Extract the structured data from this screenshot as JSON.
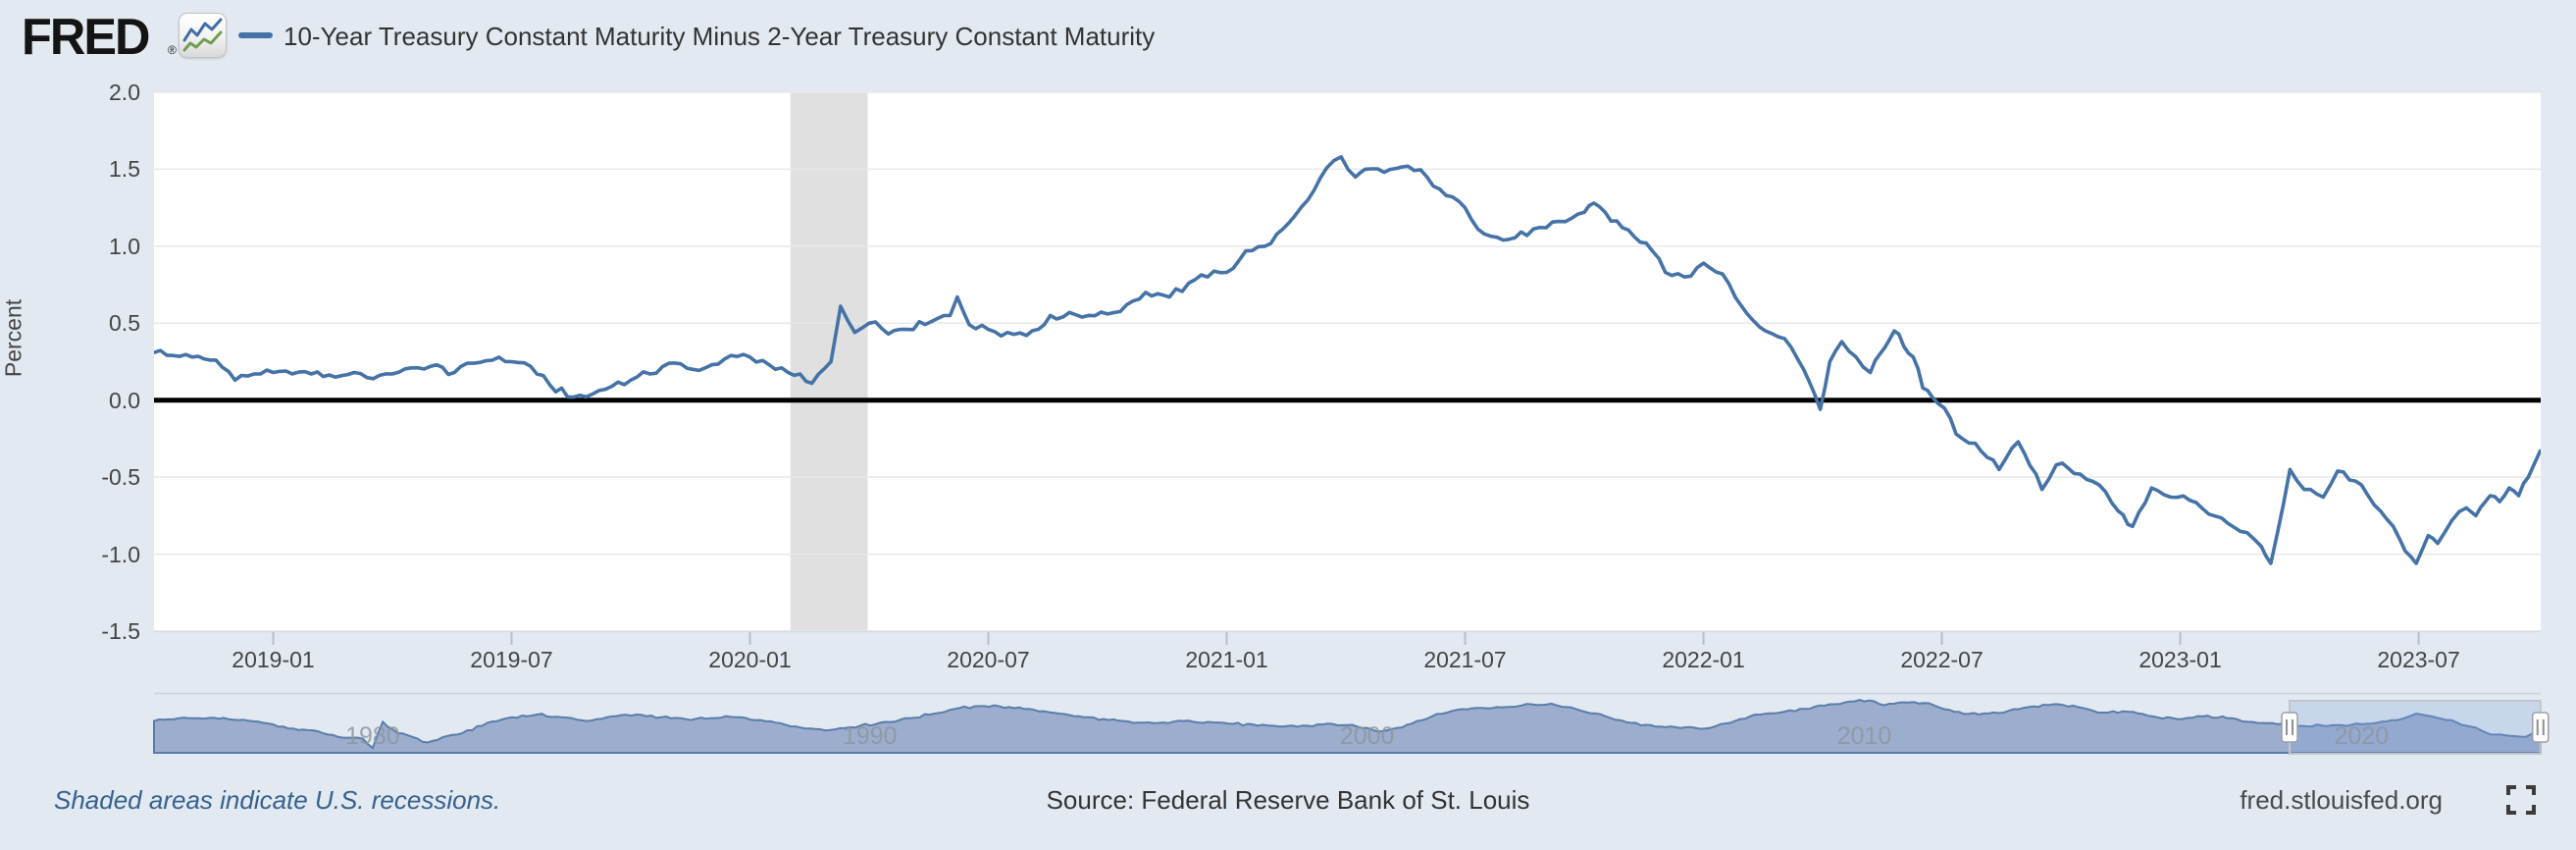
{
  "header": {
    "logo": "FRED",
    "reg": "®",
    "logo_icon": "line-chart-icon",
    "legend_label": "10-Year Treasury Constant Maturity Minus 2-Year Treasury Constant Maturity"
  },
  "footer": {
    "note": "Shaded areas indicate U.S. recessions.",
    "source": "Source: Federal Reserve Bank of St. Louis",
    "site": "fred.stlouisfed.org",
    "fullscreen_icon": "fullscreen-expand-icon"
  },
  "colors": {
    "background": "#e2e9f1",
    "plot_bg": "#ffffff",
    "grid": "#e8e8e8",
    "recession": "#e0e0e0",
    "line": "#4572a7",
    "zero_line": "#000000",
    "axis_text": "#444444",
    "tick_mark": "#b6bfca",
    "plot_bottom_border": "#d4dbe4",
    "slider_track_line": "#c9d2dd",
    "slider_fill": "#9cadcd",
    "slider_line": "#5a7dab",
    "selection_fill": "rgba(125,160,220,0.25)",
    "selection_border": "#c2c6cb",
    "handle_fill": "#fdfdfd",
    "handle_border": "#9a9fa5",
    "handle_grip": "#8b9097"
  },
  "chart_data": {
    "type": "line",
    "title": "10-Year Treasury Constant Maturity Minus 2-Year Treasury Constant Maturity",
    "xlabel": "",
    "ylabel": "Percent",
    "ylim": [
      -1.5,
      2.0
    ],
    "x_range_decimal_years": [
      2018.75,
      2023.756
    ],
    "grid": true,
    "legend_position": "top-left",
    "y_tick_labels": [
      "2.0",
      "1.5",
      "1.0",
      "0.5",
      "0.0",
      "-0.5",
      "-1.0",
      "-1.5"
    ],
    "y_tick_values": [
      2.0,
      1.5,
      1.0,
      0.5,
      0.0,
      -0.5,
      -1.0,
      -1.5
    ],
    "x_tick_labels": [
      "2019-01",
      "2019-07",
      "2020-01",
      "2020-07",
      "2021-01",
      "2021-07",
      "2022-01",
      "2022-07",
      "2023-01",
      "2023-07"
    ],
    "x_tick_values": [
      2019.0,
      2019.5,
      2020.0,
      2020.5,
      2021.0,
      2021.5,
      2022.0,
      2022.5,
      2023.0,
      2023.5
    ],
    "zero_line": 0,
    "recession_bands": [
      [
        2020.085,
        2020.247
      ]
    ],
    "series": [
      {
        "name": "10-Year Treasury Constant Maturity Minus 2-Year Treasury Constant Maturity",
        "units": "Percent",
        "color": "#4572a7",
        "points": [
          [
            2018.75,
            0.31
          ],
          [
            2018.79,
            0.29
          ],
          [
            2018.83,
            0.28
          ],
          [
            2018.88,
            0.26
          ],
          [
            2018.92,
            0.13
          ],
          [
            2018.96,
            0.17
          ],
          [
            2019.0,
            0.18
          ],
          [
            2019.04,
            0.17
          ],
          [
            2019.08,
            0.17
          ],
          [
            2019.13,
            0.15
          ],
          [
            2019.17,
            0.18
          ],
          [
            2019.21,
            0.14
          ],
          [
            2019.25,
            0.17
          ],
          [
            2019.29,
            0.21
          ],
          [
            2019.33,
            0.22
          ],
          [
            2019.38,
            0.18
          ],
          [
            2019.42,
            0.24
          ],
          [
            2019.46,
            0.26
          ],
          [
            2019.5,
            0.25
          ],
          [
            2019.54,
            0.22
          ],
          [
            2019.58,
            0.1
          ],
          [
            2019.63,
            0.02
          ],
          [
            2019.67,
            0.04
          ],
          [
            2019.71,
            0.09
          ],
          [
            2019.75,
            0.13
          ],
          [
            2019.79,
            0.17
          ],
          [
            2019.83,
            0.24
          ],
          [
            2019.88,
            0.2
          ],
          [
            2019.92,
            0.23
          ],
          [
            2019.96,
            0.29
          ],
          [
            2020.0,
            0.28
          ],
          [
            2020.04,
            0.23
          ],
          [
            2020.08,
            0.18
          ],
          [
            2020.13,
            0.11
          ],
          [
            2020.17,
            0.25
          ],
          [
            2020.19,
            0.61
          ],
          [
            2020.22,
            0.44
          ],
          [
            2020.25,
            0.5
          ],
          [
            2020.29,
            0.43
          ],
          [
            2020.33,
            0.46
          ],
          [
            2020.38,
            0.51
          ],
          [
            2020.42,
            0.55
          ],
          [
            2020.435,
            0.67
          ],
          [
            2020.46,
            0.49
          ],
          [
            2020.5,
            0.46
          ],
          [
            2020.54,
            0.44
          ],
          [
            2020.58,
            0.42
          ],
          [
            2020.63,
            0.55
          ],
          [
            2020.67,
            0.57
          ],
          [
            2020.71,
            0.55
          ],
          [
            2020.75,
            0.56
          ],
          [
            2020.79,
            0.62
          ],
          [
            2020.83,
            0.7
          ],
          [
            2020.88,
            0.67
          ],
          [
            2020.92,
            0.76
          ],
          [
            2020.96,
            0.8
          ],
          [
            2021.0,
            0.83
          ],
          [
            2021.04,
            0.97
          ],
          [
            2021.08,
            1.0
          ],
          [
            2021.13,
            1.15
          ],
          [
            2021.17,
            1.3
          ],
          [
            2021.21,
            1.51
          ],
          [
            2021.24,
            1.58
          ],
          [
            2021.27,
            1.45
          ],
          [
            2021.29,
            1.5
          ],
          [
            2021.33,
            1.48
          ],
          [
            2021.38,
            1.52
          ],
          [
            2021.42,
            1.45
          ],
          [
            2021.46,
            1.33
          ],
          [
            2021.5,
            1.25
          ],
          [
            2021.54,
            1.08
          ],
          [
            2021.58,
            1.04
          ],
          [
            2021.63,
            1.07
          ],
          [
            2021.67,
            1.12
          ],
          [
            2021.71,
            1.16
          ],
          [
            2021.75,
            1.22
          ],
          [
            2021.77,
            1.28
          ],
          [
            2021.83,
            1.12
          ],
          [
            2021.88,
            1.02
          ],
          [
            2021.92,
            0.83
          ],
          [
            2021.96,
            0.8
          ],
          [
            2022.0,
            0.89
          ],
          [
            2022.04,
            0.82
          ],
          [
            2022.08,
            0.61
          ],
          [
            2022.13,
            0.45
          ],
          [
            2022.17,
            0.4
          ],
          [
            2022.21,
            0.2
          ],
          [
            2022.245,
            -0.06
          ],
          [
            2022.265,
            0.25
          ],
          [
            2022.29,
            0.38
          ],
          [
            2022.32,
            0.28
          ],
          [
            2022.35,
            0.18
          ],
          [
            2022.37,
            0.3
          ],
          [
            2022.4,
            0.45
          ],
          [
            2022.42,
            0.35
          ],
          [
            2022.44,
            0.28
          ],
          [
            2022.46,
            0.08
          ],
          [
            2022.48,
            0.02
          ],
          [
            2022.505,
            -0.05
          ],
          [
            2022.53,
            -0.22
          ],
          [
            2022.57,
            -0.28
          ],
          [
            2022.62,
            -0.45
          ],
          [
            2022.66,
            -0.27
          ],
          [
            2022.71,
            -0.58
          ],
          [
            2022.74,
            -0.42
          ],
          [
            2022.79,
            -0.48
          ],
          [
            2022.83,
            -0.55
          ],
          [
            2022.87,
            -0.72
          ],
          [
            2022.9,
            -0.82
          ],
          [
            2022.94,
            -0.57
          ],
          [
            2022.98,
            -0.63
          ],
          [
            2023.02,
            -0.65
          ],
          [
            2023.06,
            -0.74
          ],
          [
            2023.1,
            -0.8
          ],
          [
            2023.14,
            -0.86
          ],
          [
            2023.17,
            -0.95
          ],
          [
            2023.19,
            -1.06
          ],
          [
            2023.23,
            -0.45
          ],
          [
            2023.26,
            -0.58
          ],
          [
            2023.3,
            -0.63
          ],
          [
            2023.33,
            -0.46
          ],
          [
            2023.38,
            -0.55
          ],
          [
            2023.42,
            -0.72
          ],
          [
            2023.46,
            -0.9
          ],
          [
            2023.495,
            -1.06
          ],
          [
            2023.52,
            -0.88
          ],
          [
            2023.54,
            -0.93
          ],
          [
            2023.57,
            -0.78
          ],
          [
            2023.6,
            -0.7
          ],
          [
            2023.62,
            -0.75
          ],
          [
            2023.65,
            -0.62
          ],
          [
            2023.67,
            -0.66
          ],
          [
            2023.69,
            -0.57
          ],
          [
            2023.71,
            -0.62
          ],
          [
            2023.73,
            -0.5
          ],
          [
            2023.755,
            -0.33
          ]
        ]
      }
    ]
  },
  "range_slider": {
    "full_range_decimal_years": [
      1975.8,
      2023.8
    ],
    "selected_window_decimal_years": [
      2018.75,
      2023.756
    ],
    "decade_labels": [
      "1980",
      "1990",
      "2000",
      "2010",
      "2020"
    ],
    "decade_values": [
      1980,
      1990,
      2000,
      2010,
      2020
    ],
    "overview_points": [
      [
        1975.8,
        0.7
      ],
      [
        1976.0,
        0.85
      ],
      [
        1976.5,
        1.0
      ],
      [
        1977.0,
        1.05
      ],
      [
        1977.5,
        0.8
      ],
      [
        1978.0,
        0.5
      ],
      [
        1978.5,
        -0.1
      ],
      [
        1979.0,
        -0.3
      ],
      [
        1979.5,
        -1.0
      ],
      [
        1980.0,
        -1.2
      ],
      [
        1980.2,
        -2.2
      ],
      [
        1980.4,
        0.6
      ],
      [
        1980.7,
        -0.6
      ],
      [
        1981.0,
        -1.0
      ],
      [
        1981.3,
        -1.6
      ],
      [
        1981.7,
        -0.9
      ],
      [
        1982.0,
        -0.6
      ],
      [
        1982.5,
        0.5
      ],
      [
        1983.0,
        1.1
      ],
      [
        1983.5,
        1.4
      ],
      [
        1984.0,
        1.1
      ],
      [
        1984.5,
        0.7
      ],
      [
        1985.0,
        1.2
      ],
      [
        1985.5,
        1.4
      ],
      [
        1986.0,
        1.1
      ],
      [
        1986.5,
        0.9
      ],
      [
        1987.0,
        1.0
      ],
      [
        1987.5,
        1.1
      ],
      [
        1988.0,
        0.8
      ],
      [
        1988.5,
        0.3
      ],
      [
        1989.0,
        -0.1
      ],
      [
        1989.5,
        -0.2
      ],
      [
        1990.0,
        0.2
      ],
      [
        1990.5,
        0.6
      ],
      [
        1991.0,
        1.0
      ],
      [
        1991.5,
        1.5
      ],
      [
        1992.0,
        2.1
      ],
      [
        1992.5,
        2.3
      ],
      [
        1993.0,
        2.2
      ],
      [
        1993.5,
        1.9
      ],
      [
        1994.0,
        1.5
      ],
      [
        1994.5,
        1.1
      ],
      [
        1995.0,
        0.8
      ],
      [
        1995.5,
        0.5
      ],
      [
        1996.0,
        0.5
      ],
      [
        1996.5,
        0.7
      ],
      [
        1997.0,
        0.6
      ],
      [
        1997.5,
        0.4
      ],
      [
        1998.0,
        0.2
      ],
      [
        1998.5,
        0.1
      ],
      [
        1999.0,
        0.2
      ],
      [
        1999.5,
        0.4
      ],
      [
        2000.0,
        0.1
      ],
      [
        2000.5,
        -0.4
      ],
      [
        2001.0,
        0.3
      ],
      [
        2001.5,
        1.2
      ],
      [
        2002.0,
        1.9
      ],
      [
        2002.5,
        2.1
      ],
      [
        2003.0,
        2.2
      ],
      [
        2003.5,
        2.5
      ],
      [
        2004.0,
        2.4
      ],
      [
        2004.5,
        1.8
      ],
      [
        2005.0,
        1.2
      ],
      [
        2005.5,
        0.5
      ],
      [
        2006.0,
        0.1
      ],
      [
        2006.5,
        -0.05
      ],
      [
        2007.0,
        -0.1
      ],
      [
        2007.5,
        0.5
      ],
      [
        2008.0,
        1.4
      ],
      [
        2008.5,
        1.6
      ],
      [
        2009.0,
        2.0
      ],
      [
        2009.5,
        2.5
      ],
      [
        2010.0,
        2.8
      ],
      [
        2010.3,
        2.9
      ],
      [
        2010.6,
        2.4
      ],
      [
        2011.0,
        2.7
      ],
      [
        2011.5,
        2.6
      ],
      [
        2012.0,
        1.7
      ],
      [
        2012.5,
        1.4
      ],
      [
        2013.0,
        1.6
      ],
      [
        2013.5,
        2.2
      ],
      [
        2014.0,
        2.5
      ],
      [
        2014.5,
        2.2
      ],
      [
        2015.0,
        1.6
      ],
      [
        2015.5,
        1.7
      ],
      [
        2016.0,
        1.2
      ],
      [
        2016.5,
        0.9
      ],
      [
        2017.0,
        1.2
      ],
      [
        2017.5,
        1.0
      ],
      [
        2018.0,
        0.6
      ],
      [
        2018.5,
        0.35
      ],
      [
        2019.0,
        0.18
      ],
      [
        2019.5,
        0.15
      ],
      [
        2020.0,
        0.3
      ],
      [
        2020.5,
        0.5
      ],
      [
        2021.0,
        0.9
      ],
      [
        2021.3,
        1.5
      ],
      [
        2021.6,
        1.2
      ],
      [
        2022.0,
        0.8
      ],
      [
        2022.3,
        0.2
      ],
      [
        2022.6,
        -0.3
      ],
      [
        2022.9,
        -0.75
      ],
      [
        2023.2,
        -0.9
      ],
      [
        2023.5,
        -1.0
      ],
      [
        2023.8,
        -0.4
      ]
    ]
  }
}
